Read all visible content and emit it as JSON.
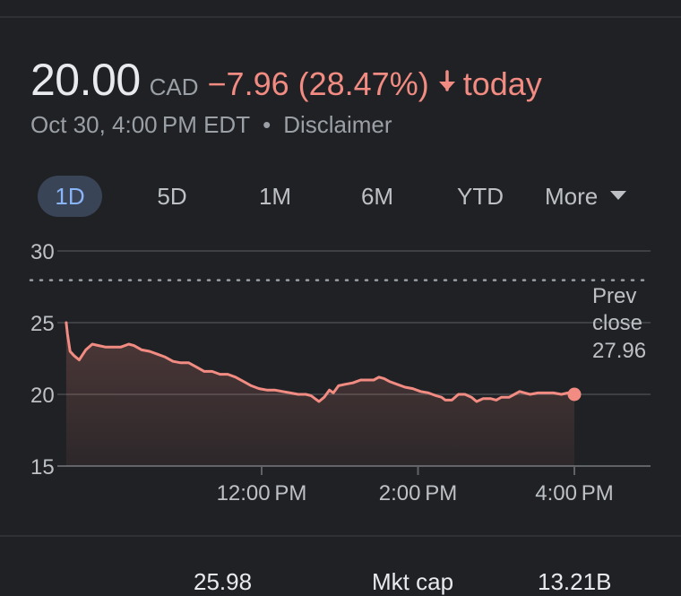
{
  "header": {
    "price": "20.00",
    "currency": "CAD",
    "change": "−7.96 (28.47%)",
    "change_suffix": "today",
    "timestamp": "Oct 30, 4:00 PM EDT",
    "separator": "•",
    "disclaimer": "Disclaimer",
    "trend_icon": "arrow-down-icon",
    "down_color": "#f28b82"
  },
  "tabs": [
    {
      "label": "1D",
      "active": true
    },
    {
      "label": "5D",
      "active": false
    },
    {
      "label": "1M",
      "active": false
    },
    {
      "label": "6M",
      "active": false
    },
    {
      "label": "YTD",
      "active": false
    },
    {
      "label": "More",
      "active": false
    }
  ],
  "chart_data": {
    "type": "area",
    "ylim": [
      15,
      30
    ],
    "yticks": [
      15,
      20,
      25,
      30
    ],
    "xticks": [
      {
        "t": 720,
        "label": "12:00 PM"
      },
      {
        "t": 840,
        "label": "2:00 PM"
      },
      {
        "t": 960,
        "label": "4:00 PM"
      }
    ],
    "x_range_minutes": [
      570,
      1035
    ],
    "grid": true,
    "prev_close": {
      "value": 27.96,
      "label_line1": "Prev",
      "label_line2": "close",
      "label_value": "27.96"
    },
    "series": [
      {
        "color": "#f28b82",
        "points": [
          [
            570,
            25.0
          ],
          [
            571,
            24.2
          ],
          [
            573,
            23.0
          ],
          [
            576,
            22.7
          ],
          [
            580,
            22.4
          ],
          [
            585,
            23.1
          ],
          [
            590,
            23.5
          ],
          [
            595,
            23.4
          ],
          [
            600,
            23.3
          ],
          [
            606,
            23.3
          ],
          [
            612,
            23.3
          ],
          [
            618,
            23.5
          ],
          [
            622,
            23.4
          ],
          [
            628,
            23.1
          ],
          [
            634,
            23.0
          ],
          [
            640,
            22.8
          ],
          [
            646,
            22.6
          ],
          [
            652,
            22.3
          ],
          [
            658,
            22.2
          ],
          [
            664,
            22.2
          ],
          [
            670,
            21.9
          ],
          [
            676,
            21.6
          ],
          [
            682,
            21.6
          ],
          [
            688,
            21.4
          ],
          [
            694,
            21.4
          ],
          [
            700,
            21.2
          ],
          [
            706,
            20.9
          ],
          [
            712,
            20.6
          ],
          [
            718,
            20.4
          ],
          [
            724,
            20.3
          ],
          [
            730,
            20.3
          ],
          [
            736,
            20.2
          ],
          [
            742,
            20.1
          ],
          [
            748,
            20.0
          ],
          [
            754,
            20.0
          ],
          [
            758,
            19.9
          ],
          [
            761,
            19.7
          ],
          [
            764,
            19.5
          ],
          [
            768,
            19.8
          ],
          [
            772,
            20.3
          ],
          [
            775,
            20.1
          ],
          [
            779,
            20.6
          ],
          [
            784,
            20.7
          ],
          [
            790,
            20.8
          ],
          [
            796,
            21.0
          ],
          [
            802,
            21.0
          ],
          [
            806,
            21.0
          ],
          [
            810,
            21.2
          ],
          [
            814,
            21.1
          ],
          [
            818,
            20.9
          ],
          [
            824,
            20.7
          ],
          [
            830,
            20.5
          ],
          [
            836,
            20.4
          ],
          [
            842,
            20.2
          ],
          [
            848,
            20.1
          ],
          [
            854,
            19.9
          ],
          [
            858,
            19.8
          ],
          [
            861,
            19.6
          ],
          [
            866,
            19.6
          ],
          [
            871,
            20.0
          ],
          [
            876,
            20.0
          ],
          [
            881,
            19.8
          ],
          [
            885,
            19.5
          ],
          [
            890,
            19.7
          ],
          [
            896,
            19.7
          ],
          [
            900,
            19.6
          ],
          [
            904,
            19.8
          ],
          [
            910,
            19.8
          ],
          [
            914,
            20.0
          ],
          [
            918,
            20.2
          ],
          [
            922,
            20.1
          ],
          [
            926,
            20.0
          ],
          [
            932,
            20.1
          ],
          [
            938,
            20.1
          ],
          [
            944,
            20.1
          ],
          [
            950,
            20.0
          ],
          [
            955,
            20.1
          ],
          [
            960,
            20.0
          ]
        ]
      }
    ]
  },
  "stats_peek": {
    "left_value": "25.98",
    "right_label": "Mkt cap",
    "right_value": "13.21B"
  }
}
